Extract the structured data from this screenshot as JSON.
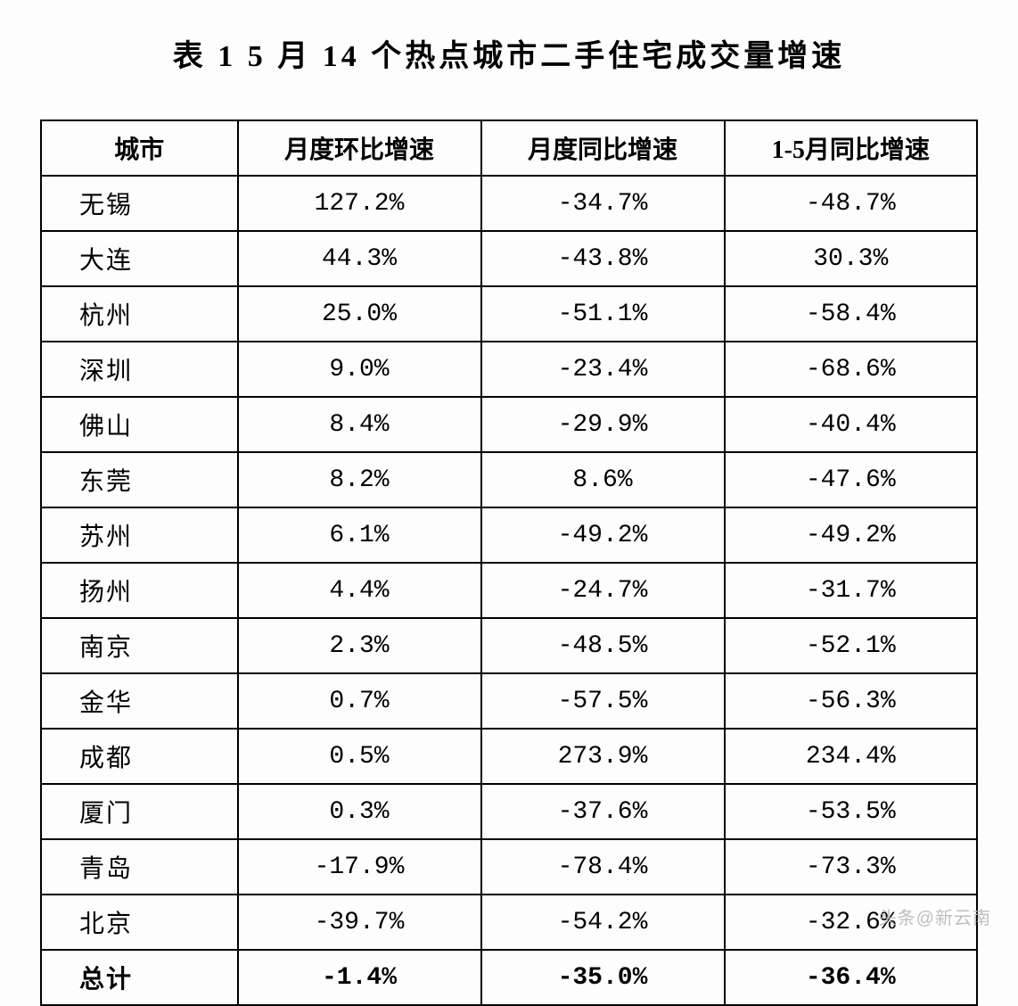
{
  "title": "表 1  5 月 14 个热点城市二手住宅成交量增速",
  "table": {
    "type": "table",
    "columns": [
      "城市",
      "月度环比增速",
      "月度同比增速",
      "1-5月同比增速"
    ],
    "column_widths_pct": [
      21,
      26,
      26,
      27
    ],
    "header_fontweight": "bold",
    "cell_fontsize": 28,
    "border_color": "#000000",
    "border_width": 2,
    "background_color": "#fdfdfd",
    "text_color": "#000000",
    "rows": [
      {
        "city": "无锡",
        "mom": "127.2%",
        "yoy": "-34.7%",
        "ytd": "-48.7%"
      },
      {
        "city": "大连",
        "mom": "44.3%",
        "yoy": "-43.8%",
        "ytd": "30.3%"
      },
      {
        "city": "杭州",
        "mom": "25.0%",
        "yoy": "-51.1%",
        "ytd": "-58.4%"
      },
      {
        "city": "深圳",
        "mom": "9.0%",
        "yoy": "-23.4%",
        "ytd": "-68.6%"
      },
      {
        "city": "佛山",
        "mom": "8.4%",
        "yoy": "-29.9%",
        "ytd": "-40.4%"
      },
      {
        "city": "东莞",
        "mom": "8.2%",
        "yoy": "8.6%",
        "ytd": "-47.6%"
      },
      {
        "city": "苏州",
        "mom": "6.1%",
        "yoy": "-49.2%",
        "ytd": "-49.2%"
      },
      {
        "city": "扬州",
        "mom": "4.4%",
        "yoy": "-24.7%",
        "ytd": "-31.7%"
      },
      {
        "city": "南京",
        "mom": "2.3%",
        "yoy": "-48.5%",
        "ytd": "-52.1%"
      },
      {
        "city": "金华",
        "mom": "0.7%",
        "yoy": "-57.5%",
        "ytd": "-56.3%"
      },
      {
        "city": "成都",
        "mom": "0.5%",
        "yoy": "273.9%",
        "ytd": "234.4%"
      },
      {
        "city": "厦门",
        "mom": "0.3%",
        "yoy": "-37.6%",
        "ytd": "-53.5%"
      },
      {
        "city": "青岛",
        "mom": "-17.9%",
        "yoy": "-78.4%",
        "ytd": "-73.3%"
      },
      {
        "city": "北京",
        "mom": "-39.7%",
        "yoy": "-54.2%",
        "ytd": "-32.6%"
      }
    ],
    "total": {
      "city": "总计",
      "mom": "-1.4%",
      "yoy": "-35.0%",
      "ytd": "-36.4%"
    }
  },
  "watermark": "头条@新云南"
}
